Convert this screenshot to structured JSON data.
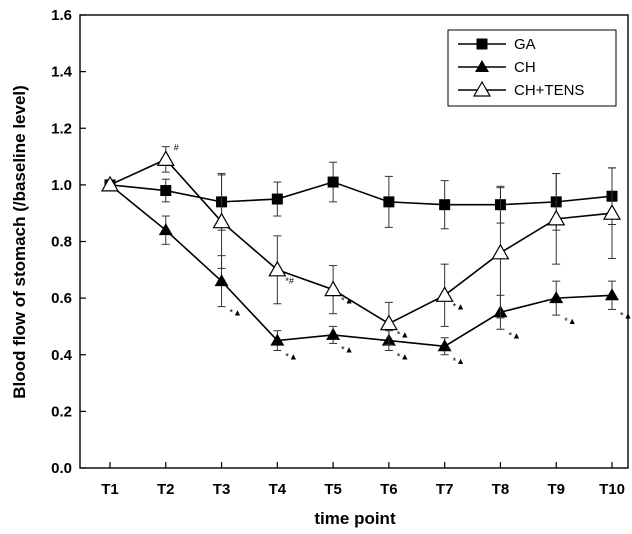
{
  "chart_data": {
    "type": "line",
    "xlabel": "time point",
    "ylabel": "Blood flow of stomach (/baseline level)",
    "categories": [
      "T1",
      "T2",
      "T3",
      "T4",
      "T5",
      "T6",
      "T7",
      "T8",
      "T9",
      "T10"
    ],
    "ylim": [
      0.0,
      1.6
    ],
    "yticks": [
      "0.0",
      "0.2",
      "0.4",
      "0.6",
      "0.8",
      "1.0",
      "1.2",
      "1.4",
      "1.6"
    ],
    "grid": false,
    "legend_position": "top-right",
    "series": [
      {
        "name": "GA",
        "marker": "filled-square",
        "values": [
          1.0,
          0.98,
          0.94,
          0.95,
          1.01,
          0.94,
          0.93,
          0.93,
          0.94,
          0.96
        ],
        "errors": [
          0.0,
          0.04,
          0.1,
          0.06,
          0.07,
          0.09,
          0.085,
          0.065,
          0.1,
          0.1
        ],
        "annotations": [
          "",
          "",
          "",
          "",
          "",
          "",
          "",
          "",
          "",
          ""
        ]
      },
      {
        "name": "CH",
        "marker": "filled-triangle",
        "values": [
          1.0,
          0.84,
          0.66,
          0.45,
          0.47,
          0.45,
          0.43,
          0.55,
          0.6,
          0.61
        ],
        "errors": [
          0.0,
          0.05,
          0.09,
          0.035,
          0.03,
          0.035,
          0.03,
          0.06,
          0.06,
          0.05
        ],
        "annotations": [
          "",
          "",
          "*▲",
          "*▲",
          "*▲",
          "*▲",
          "*▲",
          "*▲",
          "*▲",
          "*▲"
        ]
      },
      {
        "name": "CH+TENS",
        "marker": "open-triangle",
        "values": [
          1.0,
          1.09,
          0.87,
          0.7,
          0.63,
          0.51,
          0.61,
          0.76,
          0.88,
          0.9
        ],
        "errors": [
          0.0,
          0.045,
          0.165,
          0.12,
          0.085,
          0.075,
          0.11,
          0.23,
          0.16,
          0.16
        ],
        "annotations": [
          "",
          "#",
          "",
          "*#",
          "*▲",
          "*▲",
          "*▲",
          "",
          "",
          ""
        ]
      }
    ]
  }
}
